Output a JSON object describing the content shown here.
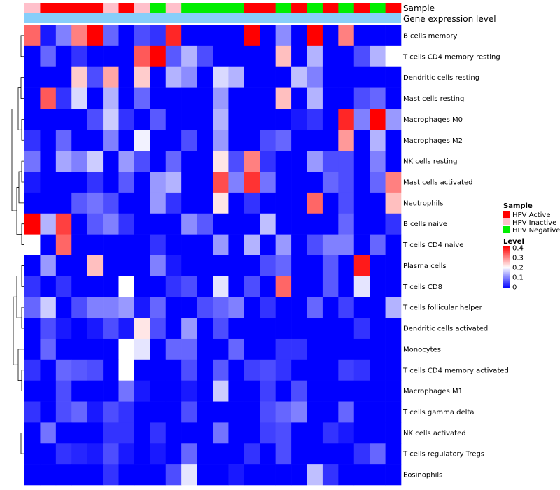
{
  "chart_data": {
    "type": "heatmap",
    "annotation_labels": {
      "sample": "Sample",
      "gene_expression": "Gene expression level"
    },
    "samples": [
      "HPV Inactive",
      "HPV Active",
      "HPV Active",
      "HPV Active",
      "HPV Active",
      "HPV Inactive",
      "HPV Active",
      "HPV Inactive",
      "HPV Negative",
      "HPV Inactive",
      "HPV Negative",
      "HPV Negative",
      "HPV Negative",
      "HPV Negative",
      "HPV Active",
      "HPV Active",
      "HPV Negative",
      "HPV Active",
      "HPV Negative",
      "HPV Active",
      "HPV Negative",
      "HPV Active",
      "HPV Negative",
      "HPV Active"
    ],
    "row_labels": [
      "B cells memory",
      "T cells CD4 memory resting",
      "Dendritic cells resting",
      "Mast cells resting",
      "Macrophages M0",
      "Macrophages M2",
      "NK cells resting",
      "Mast cells activated",
      "Neutrophils",
      "B cells naive",
      "T cells CD4 naive",
      "Plasma cells",
      "T cells CD8",
      "T cells follicular helper",
      "Dendritic cells activated",
      "Monocytes",
      "T cells CD4 memory activated",
      "Macrophages M1",
      "T cells gamma delta",
      "NK cells activated",
      "T cells regulatory  Tregs",
      "Eosinophils"
    ],
    "values": [
      [
        0.32,
        0.02,
        0.1,
        0.3,
        0.4,
        0.08,
        0.0,
        0.06,
        0.04,
        0.37,
        0.0,
        0.0,
        0.0,
        0.0,
        0.4,
        0.0,
        0.11,
        0.0,
        0.4,
        0.0,
        0.3,
        0.0,
        0.0,
        0.0
      ],
      [
        0.0,
        0.08,
        0.0,
        0.04,
        0.0,
        0.0,
        0.0,
        0.33,
        0.4,
        0.07,
        0.14,
        0.06,
        0.0,
        0.0,
        0.0,
        0.0,
        0.25,
        0.0,
        0.14,
        0.0,
        0.0,
        0.06,
        0.14,
        0.2
      ],
      [
        0.0,
        0.0,
        0.0,
        0.24,
        0.06,
        0.27,
        0.0,
        0.24,
        0.0,
        0.14,
        0.11,
        0.0,
        0.17,
        0.14,
        0.0,
        0.0,
        0.0,
        0.15,
        0.1,
        0.0,
        0.0,
        0.0,
        0.0,
        0.0
      ],
      [
        0.0,
        0.33,
        0.04,
        0.17,
        0.0,
        0.14,
        0.0,
        0.08,
        0.0,
        0.0,
        0.0,
        0.0,
        0.12,
        0.0,
        0.0,
        0.0,
        0.25,
        0.0,
        0.14,
        0.0,
        0.0,
        0.06,
        0.08,
        0.0
      ],
      [
        0.0,
        0.0,
        0.0,
        0.0,
        0.06,
        0.16,
        0.04,
        0.0,
        0.07,
        0.0,
        0.0,
        0.0,
        0.14,
        0.0,
        0.0,
        0.0,
        0.0,
        0.02,
        0.04,
        0.0,
        0.37,
        0.1,
        0.4,
        0.12
      ],
      [
        0.04,
        0.0,
        0.08,
        0.0,
        0.0,
        0.1,
        0.0,
        0.19,
        0.0,
        0.0,
        0.06,
        0.0,
        0.12,
        0.0,
        0.0,
        0.06,
        0.08,
        0.0,
        0.0,
        0.0,
        0.28,
        0.0,
        0.14,
        0.0
      ],
      [
        0.09,
        0.0,
        0.13,
        0.1,
        0.16,
        0.0,
        0.12,
        0.06,
        0.0,
        0.08,
        0.0,
        0.0,
        0.22,
        0.06,
        0.3,
        0.04,
        0.0,
        0.0,
        0.12,
        0.06,
        0.06,
        0.0,
        0.1,
        0.0
      ],
      [
        0.02,
        0.0,
        0.0,
        0.0,
        0.04,
        0.0,
        0.07,
        0.0,
        0.12,
        0.14,
        0.0,
        0.0,
        0.34,
        0.1,
        0.36,
        0.09,
        0.0,
        0.0,
        0.0,
        0.08,
        0.06,
        0.0,
        0.08,
        0.3
      ],
      [
        0.0,
        0.0,
        0.0,
        0.07,
        0.09,
        0.06,
        0.0,
        0.0,
        0.12,
        0.04,
        0.0,
        0.0,
        0.22,
        0.0,
        0.04,
        0.0,
        0.0,
        0.0,
        0.32,
        0.0,
        0.06,
        0.0,
        0.0,
        0.25
      ],
      [
        0.4,
        0.14,
        0.35,
        0.0,
        0.07,
        0.1,
        0.04,
        0.0,
        0.0,
        0.0,
        0.11,
        0.07,
        0.0,
        0.0,
        0.0,
        0.15,
        0.0,
        0.0,
        0.0,
        0.0,
        0.08,
        0.0,
        0.0,
        0.04
      ],
      [
        0.2,
        0.0,
        0.32,
        0.0,
        0.0,
        0.0,
        0.0,
        0.0,
        0.04,
        0.0,
        0.0,
        0.0,
        0.12,
        0.0,
        0.14,
        0.0,
        0.12,
        0.0,
        0.06,
        0.1,
        0.1,
        0.0,
        0.08,
        0.0
      ],
      [
        0.0,
        0.12,
        0.0,
        0.0,
        0.25,
        0.0,
        0.0,
        0.0,
        0.1,
        0.02,
        0.0,
        0.0,
        0.0,
        0.0,
        0.0,
        0.06,
        0.08,
        0.0,
        0.0,
        0.07,
        0.0,
        0.38,
        0.0,
        0.0
      ],
      [
        0.04,
        0.0,
        0.04,
        0.0,
        0.0,
        0.0,
        0.2,
        0.0,
        0.0,
        0.04,
        0.06,
        0.0,
        0.18,
        0.0,
        0.06,
        0.0,
        0.32,
        0.0,
        0.0,
        0.07,
        0.0,
        0.18,
        0.0,
        0.0
      ],
      [
        0.08,
        0.16,
        0.0,
        0.06,
        0.1,
        0.1,
        0.12,
        0.02,
        0.08,
        0.0,
        0.0,
        0.06,
        0.08,
        0.1,
        0.0,
        0.04,
        0.0,
        0.0,
        0.08,
        0.0,
        0.05,
        0.0,
        0.0,
        0.14
      ],
      [
        0.0,
        0.06,
        0.02,
        0.0,
        0.02,
        0.06,
        0.02,
        0.22,
        0.06,
        0.0,
        0.12,
        0.0,
        0.06,
        0.0,
        0.0,
        0.0,
        0.0,
        0.0,
        0.0,
        0.0,
        0.0,
        0.04,
        0.0,
        0.0
      ],
      [
        0.0,
        0.08,
        0.0,
        0.0,
        0.0,
        0.0,
        0.2,
        0.18,
        0.0,
        0.08,
        0.08,
        0.0,
        0.0,
        0.08,
        0.0,
        0.0,
        0.04,
        0.04,
        0.0,
        0.0,
        0.0,
        0.0,
        0.0,
        0.0
      ],
      [
        0.04,
        0.0,
        0.08,
        0.07,
        0.06,
        0.0,
        0.2,
        0.0,
        0.0,
        0.0,
        0.06,
        0.0,
        0.07,
        0.0,
        0.05,
        0.06,
        0.04,
        0.0,
        0.0,
        0.0,
        0.05,
        0.04,
        0.0,
        0.0
      ],
      [
        0.0,
        0.0,
        0.06,
        0.0,
        0.0,
        0.0,
        0.09,
        0.02,
        0.0,
        0.0,
        0.02,
        0.0,
        0.16,
        0.0,
        0.0,
        0.05,
        0.0,
        0.06,
        0.0,
        0.0,
        0.0,
        0.0,
        0.0,
        0.0
      ],
      [
        0.04,
        0.0,
        0.06,
        0.08,
        0.02,
        0.06,
        0.04,
        0.0,
        0.0,
        0.0,
        0.06,
        0.0,
        0.0,
        0.0,
        0.0,
        0.06,
        0.08,
        0.1,
        0.0,
        0.0,
        0.08,
        0.0,
        0.0,
        0.0
      ],
      [
        0.0,
        0.09,
        0.0,
        0.0,
        0.0,
        0.04,
        0.04,
        0.0,
        0.04,
        0.0,
        0.0,
        0.0,
        0.09,
        0.0,
        0.0,
        0.05,
        0.06,
        0.0,
        0.0,
        0.04,
        0.02,
        0.0,
        0.0,
        0.0
      ],
      [
        0.0,
        0.0,
        0.04,
        0.03,
        0.02,
        0.06,
        0.02,
        0.0,
        0.02,
        0.0,
        0.08,
        0.0,
        0.0,
        0.0,
        0.04,
        0.0,
        0.06,
        0.0,
        0.0,
        0.0,
        0.0,
        0.04,
        0.08,
        0.0
      ],
      [
        0.0,
        0.0,
        0.0,
        0.0,
        0.0,
        0.04,
        0.0,
        0.0,
        0.0,
        0.06,
        0.18,
        0.0,
        0.0,
        0.02,
        0.0,
        0.0,
        0.0,
        0.0,
        0.15,
        0.04,
        0.0,
        0.0,
        0.0,
        0.0
      ]
    ],
    "legend": {
      "sample_title": "Sample",
      "sample_items": [
        {
          "label": "HPV Active",
          "color": "#ff0000"
        },
        {
          "label": "HPV Inactive",
          "color": "#ffc0cb"
        },
        {
          "label": "HPV Negative",
          "color": "#00ee00"
        }
      ],
      "level_title": "Level",
      "level_ticks": [
        "0.4",
        "0.3",
        "0.2",
        "0.1",
        "0"
      ],
      "range": [
        0,
        0.4
      ]
    },
    "colors": {
      "low": "#0000ff",
      "mid": "#ffffff",
      "high": "#ff0000",
      "expression_bar": "#87cefa"
    }
  }
}
